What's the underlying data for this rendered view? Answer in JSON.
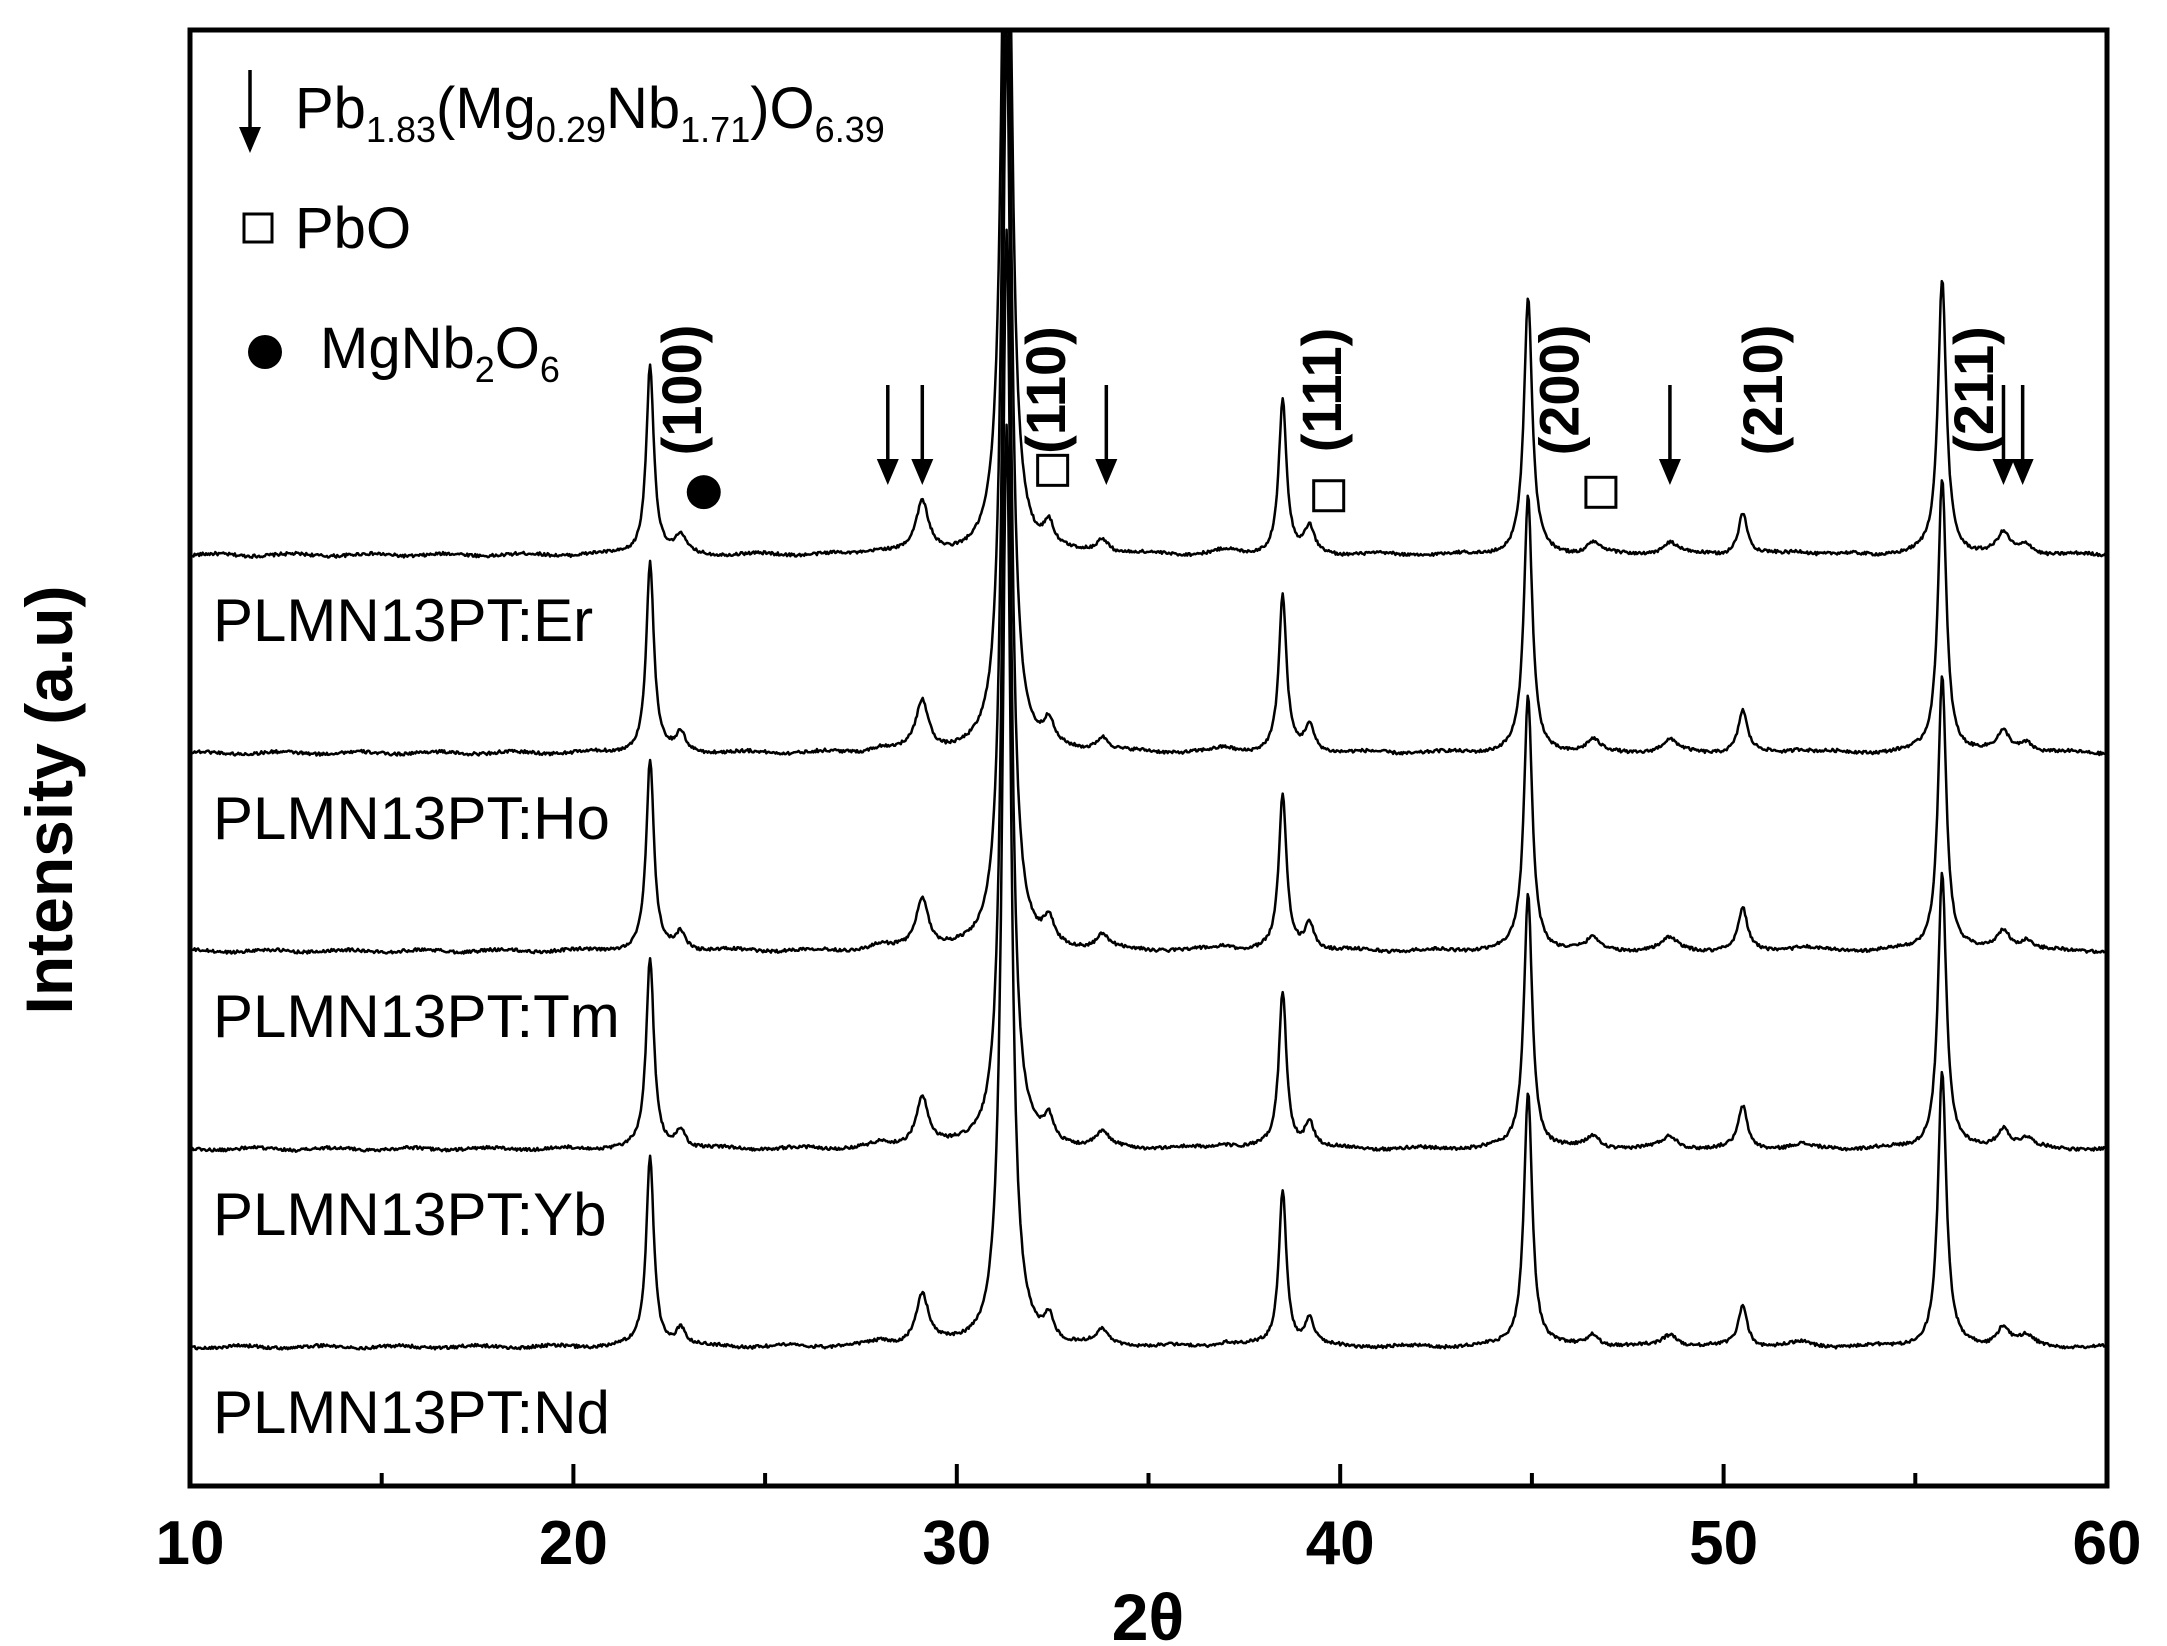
{
  "chart_data": {
    "type": "line",
    "title": "",
    "xlabel": "2θ",
    "ylabel": "Intensity (a.u)",
    "xlim": [
      10,
      60
    ],
    "x_ticks": [
      "10",
      "20",
      "30",
      "40",
      "50",
      "60"
    ],
    "y_ticks": [],
    "grid": false,
    "series": [
      {
        "name": "PLMN13PT:Er",
        "offset": 4
      },
      {
        "name": "PLMN13PT:Ho",
        "offset": 3
      },
      {
        "name": "PLMN13PT:Tm",
        "offset": 2
      },
      {
        "name": "PLMN13PT:Yb",
        "offset": 1
      },
      {
        "name": "PLMN13PT:Nd",
        "offset": 0
      }
    ],
    "peaks": [
      {
        "two_theta": 22.0,
        "height": 0.95,
        "width": 0.12
      },
      {
        "two_theta": 22.8,
        "height": 0.09,
        "width": 0.15
      },
      {
        "two_theta": 28.0,
        "height": 0.02,
        "width": 0.3
      },
      {
        "two_theta": 29.1,
        "height": 0.25,
        "width": 0.2
      },
      {
        "two_theta": 31.3,
        "height": 4.6,
        "width": 0.14
      },
      {
        "two_theta": 32.4,
        "height": 0.12,
        "width": 0.15
      },
      {
        "two_theta": 33.8,
        "height": 0.07,
        "width": 0.2
      },
      {
        "two_theta": 37.0,
        "height": 0.02,
        "width": 0.3
      },
      {
        "two_theta": 38.5,
        "height": 0.78,
        "width": 0.12
      },
      {
        "two_theta": 39.2,
        "height": 0.13,
        "width": 0.15
      },
      {
        "two_theta": 44.9,
        "height": 1.28,
        "width": 0.13
      },
      {
        "two_theta": 46.6,
        "height": 0.06,
        "width": 0.2
      },
      {
        "two_theta": 48.6,
        "height": 0.06,
        "width": 0.25
      },
      {
        "two_theta": 50.5,
        "height": 0.21,
        "width": 0.14
      },
      {
        "two_theta": 52.0,
        "height": 0.02,
        "width": 0.3
      },
      {
        "two_theta": 55.7,
        "height": 1.38,
        "width": 0.13
      },
      {
        "two_theta": 57.3,
        "height": 0.1,
        "width": 0.2
      },
      {
        "two_theta": 57.9,
        "height": 0.05,
        "width": 0.2
      }
    ],
    "annotations": [
      {
        "text": "(100)",
        "x": 22.8
      },
      {
        "text": "(110)",
        "x": 32.3
      },
      {
        "text": "(111)",
        "x": 39.5
      },
      {
        "text": "(200)",
        "x": 45.7
      },
      {
        "text": "(210)",
        "x": 51.0
      },
      {
        "text": "(211)",
        "x": 56.5
      }
    ],
    "phase_markers": [
      {
        "symbol": "arrow",
        "x": 28.2
      },
      {
        "symbol": "arrow",
        "x": 29.1
      },
      {
        "symbol": "arrow",
        "x": 33.9
      },
      {
        "symbol": "arrow",
        "x": 48.6
      },
      {
        "symbol": "arrow",
        "x": 57.3
      },
      {
        "symbol": "arrow",
        "x": 57.8
      },
      {
        "symbol": "square",
        "x": 32.5
      },
      {
        "symbol": "square",
        "x": 39.7
      },
      {
        "symbol": "square",
        "x": 46.8
      },
      {
        "symbol": "circle",
        "x": 23.4
      }
    ],
    "legend": {
      "position": "top-left",
      "entries": [
        {
          "symbol": "arrow",
          "parts": [
            "Pb",
            "1.83",
            "(Mg",
            "0.29",
            "Nb",
            "1.71",
            ")O",
            "6.39"
          ]
        },
        {
          "symbol": "square",
          "parts": [
            "PbO"
          ]
        },
        {
          "symbol": "circle",
          "parts": [
            "MgNb",
            "2",
            "O",
            "6"
          ]
        }
      ]
    }
  }
}
